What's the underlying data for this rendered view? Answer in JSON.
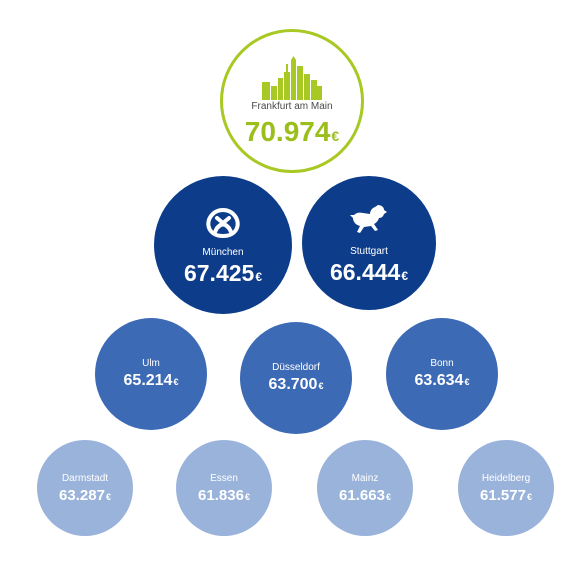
{
  "currency": "€",
  "cities": [
    {
      "id": "frankfurt",
      "name": "Frankfurt am Main",
      "value": "70.974",
      "tier": "top",
      "icon": "skyline-icon"
    },
    {
      "id": "muenchen",
      "name": "München",
      "value": "67.425",
      "tier": "dark",
      "icon": "pretzel-icon"
    },
    {
      "id": "stuttgart",
      "name": "Stuttgart",
      "value": "66.444",
      "tier": "dark",
      "icon": "horse-icon"
    },
    {
      "id": "ulm",
      "name": "Ulm",
      "value": "65.214",
      "tier": "mid"
    },
    {
      "id": "duesseldorf",
      "name": "Düsseldorf",
      "value": "63.700",
      "tier": "mid"
    },
    {
      "id": "bonn",
      "name": "Bonn",
      "value": "63.634",
      "tier": "mid"
    },
    {
      "id": "darmstadt",
      "name": "Darmstadt",
      "value": "63.287",
      "tier": "light"
    },
    {
      "id": "essen",
      "name": "Essen",
      "value": "61.836",
      "tier": "light"
    },
    {
      "id": "mainz",
      "name": "Mainz",
      "value": "61.663",
      "tier": "light"
    },
    {
      "id": "heidelberg",
      "name": "Heidelberg",
      "value": "61.577",
      "tier": "light"
    }
  ],
  "colors": {
    "top_border": "#a8c823",
    "top_value": "#9bbe1a",
    "dark": "#0d3d8a",
    "mid": "#3d6ab5",
    "light": "#9ab3db"
  }
}
